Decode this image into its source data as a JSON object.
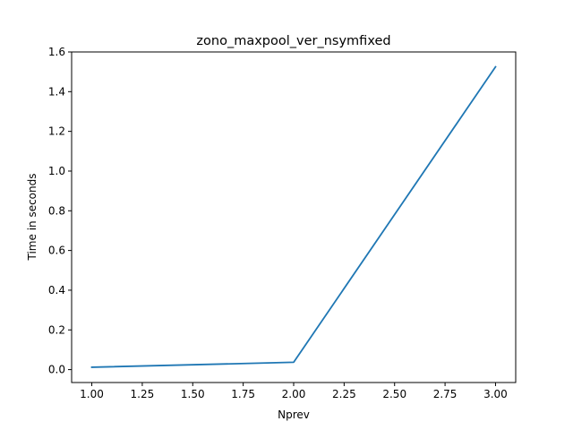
{
  "chart_data": {
    "type": "line",
    "title": "zono_maxpool_ver_nsymfixed",
    "xlabel": "Nprev",
    "ylabel": "Time in seconds",
    "xlim": [
      0.9,
      3.1
    ],
    "ylim": [
      -0.065,
      1.6
    ],
    "xticks": [
      1.0,
      1.25,
      1.5,
      1.75,
      2.0,
      2.25,
      2.5,
      2.75,
      3.0
    ],
    "xtick_labels": [
      "1.00",
      "1.25",
      "1.50",
      "1.75",
      "2.00",
      "2.25",
      "2.50",
      "2.75",
      "3.00"
    ],
    "yticks": [
      0.0,
      0.2,
      0.4,
      0.6,
      0.8,
      1.0,
      1.2,
      1.4,
      1.6
    ],
    "ytick_labels": [
      "0.0",
      "0.2",
      "0.4",
      "0.6",
      "0.8",
      "1.0",
      "1.2",
      "1.4",
      "1.6"
    ],
    "grid": false,
    "series": [
      {
        "color": "#1f77b4",
        "x": [
          1,
          2,
          3
        ],
        "y": [
          0.012,
          0.037,
          1.525
        ]
      }
    ]
  }
}
